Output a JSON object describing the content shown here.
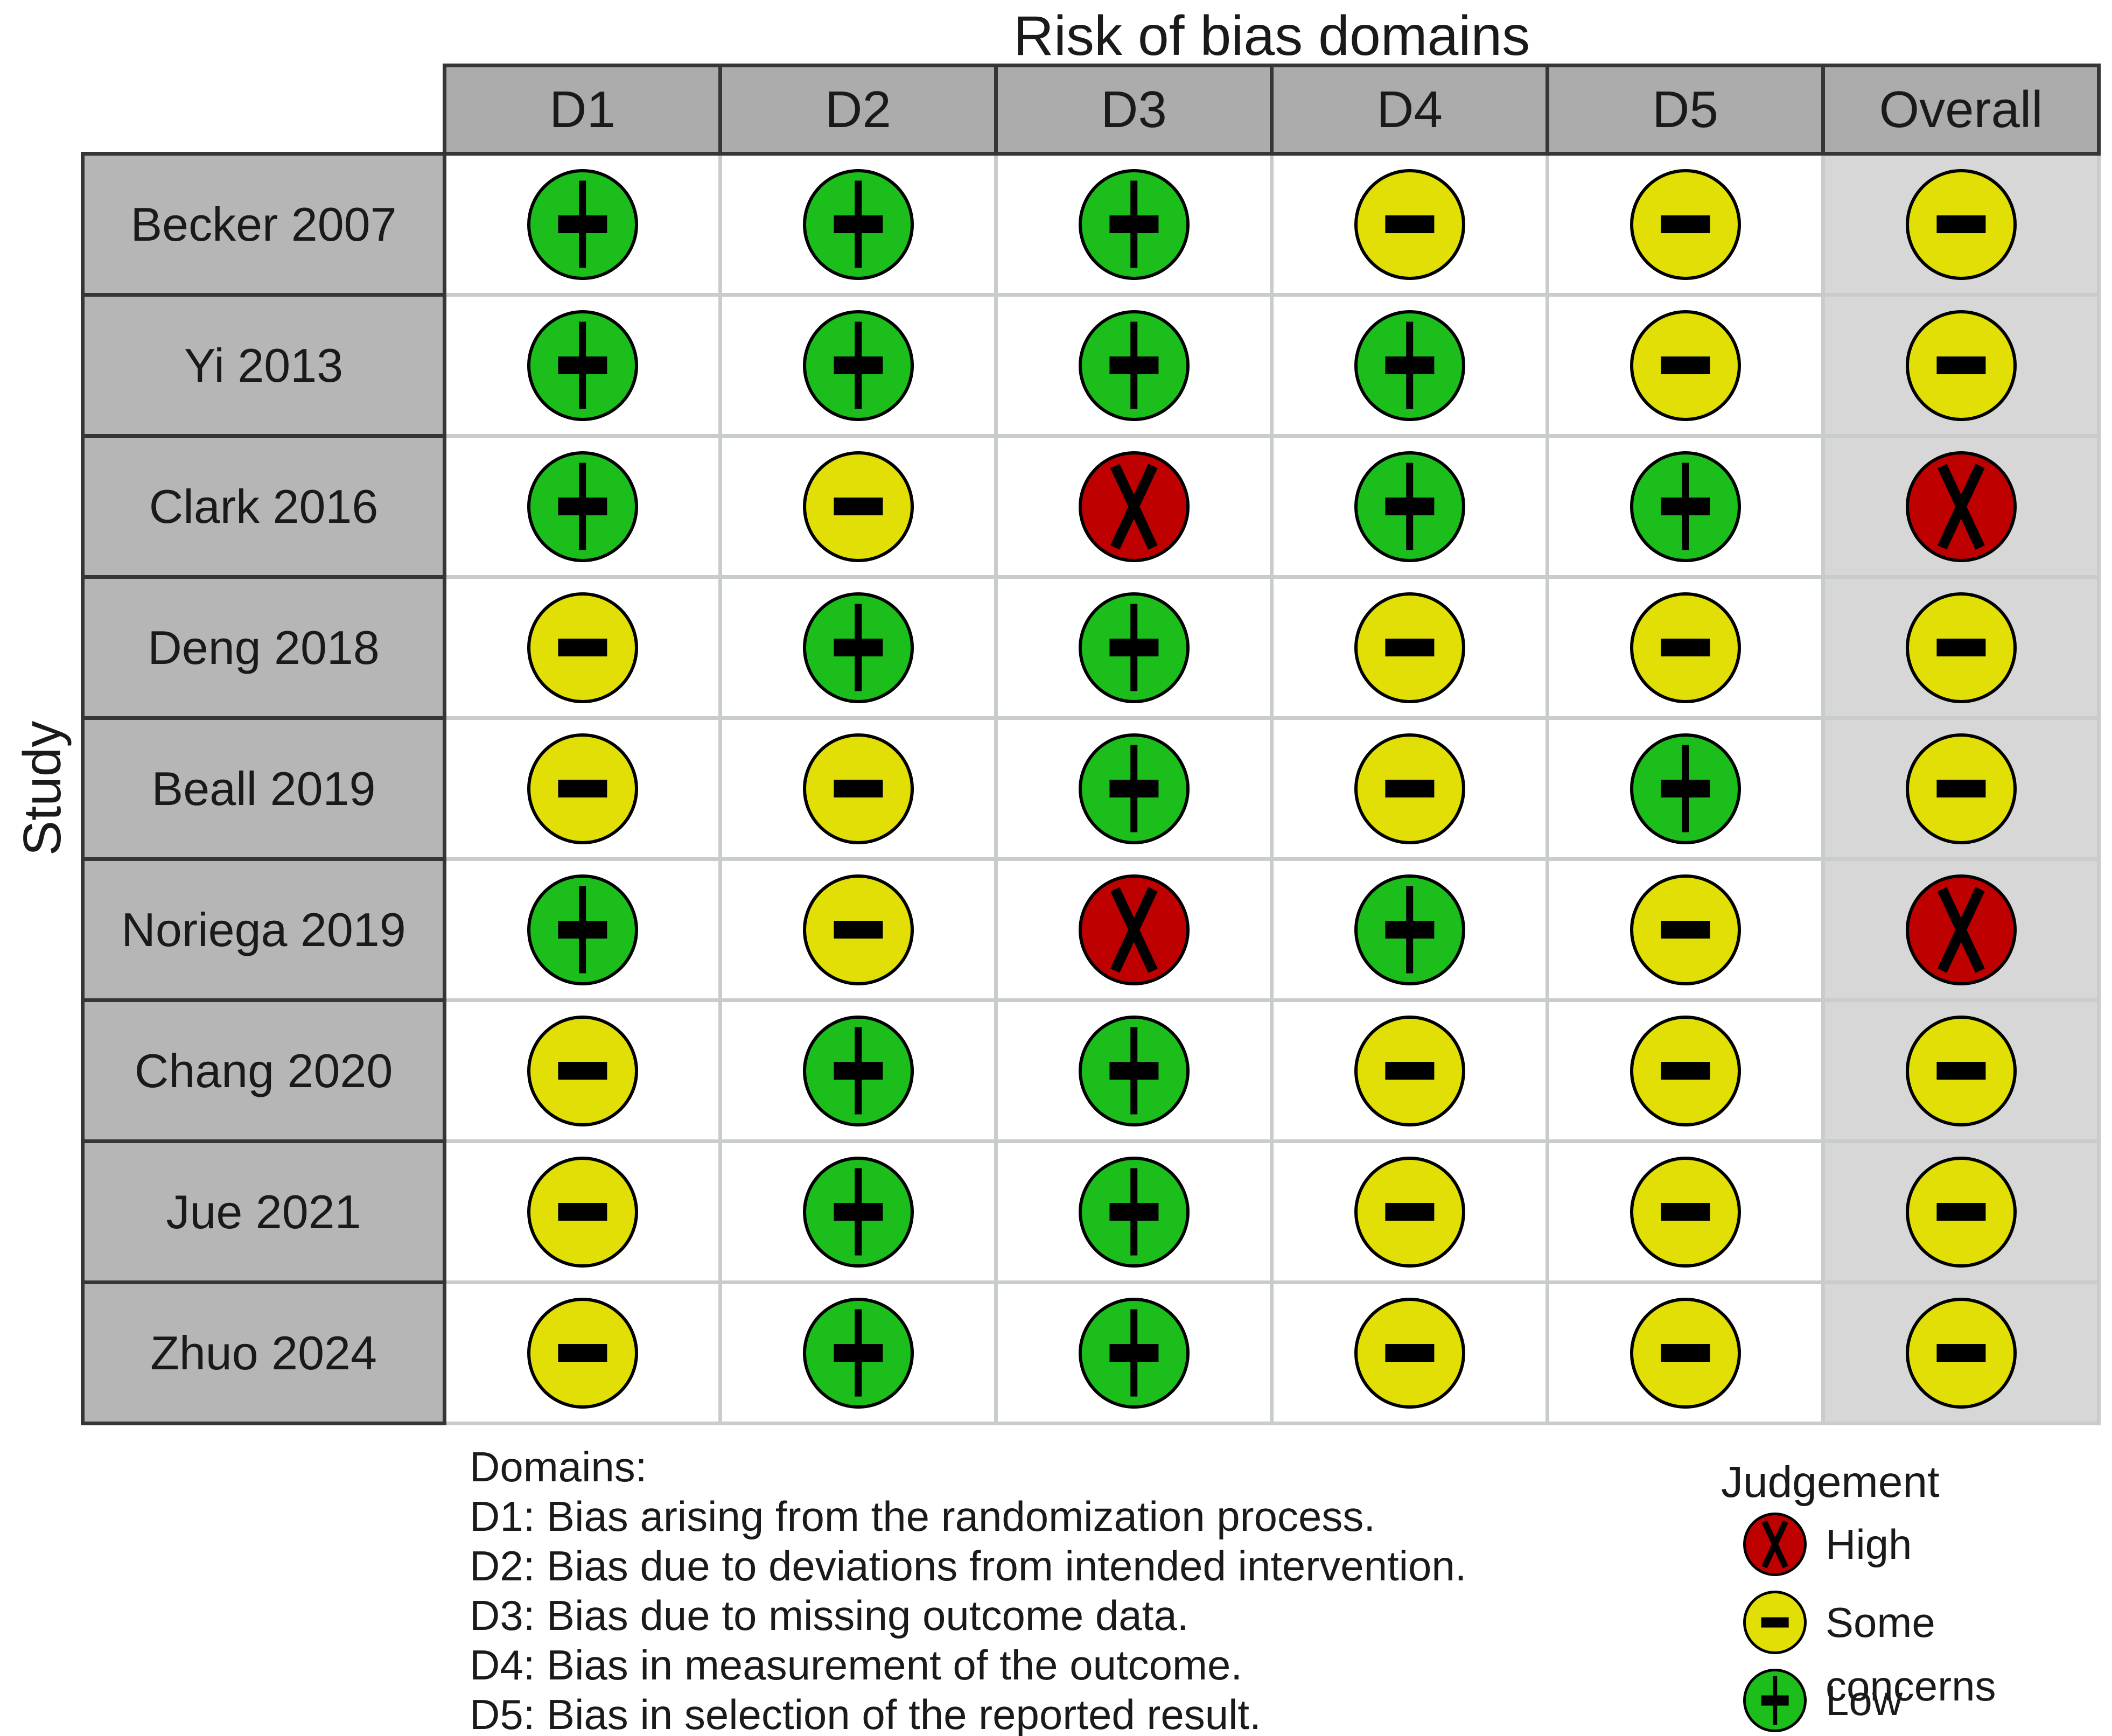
{
  "chart_data": {
    "type": "table",
    "title": "Risk of bias domains",
    "ylabel": "Study",
    "columns": [
      "D1",
      "D2",
      "D3",
      "D4",
      "D5",
      "Overall"
    ],
    "rows": [
      {
        "study": "Becker 2007",
        "judgements": [
          "low",
          "low",
          "low",
          "some_concerns",
          "some_concerns",
          "some_concerns"
        ]
      },
      {
        "study": "Yi 2013",
        "judgements": [
          "low",
          "low",
          "low",
          "low",
          "some_concerns",
          "some_concerns"
        ]
      },
      {
        "study": "Clark 2016",
        "judgements": [
          "low",
          "some_concerns",
          "high",
          "low",
          "low",
          "high"
        ]
      },
      {
        "study": "Deng 2018",
        "judgements": [
          "some_concerns",
          "low",
          "low",
          "some_concerns",
          "some_concerns",
          "some_concerns"
        ]
      },
      {
        "study": "Beall 2019",
        "judgements": [
          "some_concerns",
          "some_concerns",
          "low",
          "some_concerns",
          "low",
          "some_concerns"
        ]
      },
      {
        "study": "Noriega 2019",
        "judgements": [
          "low",
          "some_concerns",
          "high",
          "low",
          "some_concerns",
          "high"
        ]
      },
      {
        "study": "Chang 2020",
        "judgements": [
          "some_concerns",
          "low",
          "low",
          "some_concerns",
          "some_concerns",
          "some_concerns"
        ]
      },
      {
        "study": "Jue 2021",
        "judgements": [
          "some_concerns",
          "low",
          "low",
          "some_concerns",
          "some_concerns",
          "some_concerns"
        ]
      },
      {
        "study": "Zhuo 2024",
        "judgements": [
          "some_concerns",
          "low",
          "low",
          "some_concerns",
          "some_concerns",
          "some_concerns"
        ]
      }
    ]
  },
  "judgements": {
    "high": {
      "label": "High",
      "symbol": "x",
      "color": "#BF0000"
    },
    "some_concerns": {
      "label": "Some concerns",
      "symbol": "minus",
      "color": "#E2DF07"
    },
    "low": {
      "label": "Low",
      "symbol": "plus",
      "color": "#1CBE1C"
    }
  },
  "legend": {
    "title": "Judgement",
    "items": [
      {
        "judgement": "high"
      },
      {
        "judgement": "some_concerns"
      },
      {
        "judgement": "low"
      }
    ]
  },
  "footer": {
    "heading": "Domains:",
    "lines": [
      "D1: Bias arising from the randomization process.",
      "D2: Bias due to deviations from intended intervention.",
      "D3: Bias due to missing outcome data.",
      "D4: Bias in measurement of the outcome.",
      "D5: Bias in selection of the reported result."
    ]
  },
  "colors": {
    "background": "#FFFFFF",
    "header_bg": "#ACACAC",
    "label_bg": "#B6B6B6",
    "overall_bg": "#D7D7D7",
    "grid_dark": "#363636",
    "grid_light": "#C9CDC9",
    "circle_outline": "#000000",
    "text": "#1A1A1A"
  }
}
